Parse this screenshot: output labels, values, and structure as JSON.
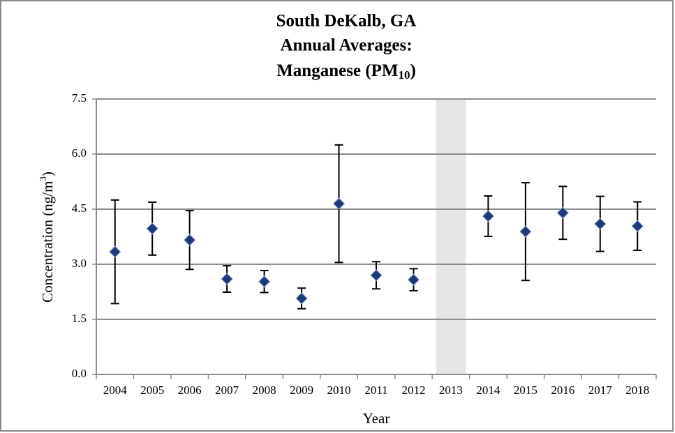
{
  "chart_data": {
    "type": "errorbar_scatter",
    "title": [
      "South DeKalb, GA",
      "Annual Averages:"
    ],
    "title_line3": {
      "text": "Manganese (PM",
      "subscript": "10",
      "after": ")"
    },
    "y_label": {
      "text": "Concentration (ng/m",
      "superscript": "3",
      "after": ")"
    },
    "x_label": "Year",
    "categories": [
      "2004",
      "2005",
      "2006",
      "2007",
      "2008",
      "2009",
      "2010",
      "2011",
      "2012",
      "2013",
      "2014",
      "2015",
      "2016",
      "2017",
      "2018"
    ],
    "values": [
      3.34,
      3.97,
      3.66,
      2.6,
      2.53,
      2.07,
      4.65,
      2.7,
      2.58,
      null,
      4.31,
      3.89,
      4.4,
      4.1,
      4.04
    ],
    "errors": [
      1.41,
      0.72,
      0.8,
      0.36,
      0.3,
      0.28,
      1.6,
      0.37,
      0.3,
      null,
      0.55,
      1.33,
      0.72,
      0.75,
      0.66
    ],
    "color": "#1f3a78",
    "shaded_category_index": 9,
    "shade_color": "#e6e6e6",
    "ylim": [
      0,
      7.5
    ],
    "yticks": [
      {
        "value": 0,
        "label": "0.0"
      },
      1.5,
      {
        "value": 3,
        "label": "3.0"
      },
      4.5,
      {
        "value": 6,
        "label": "6.0"
      },
      7.5
    ],
    "grid": true
  }
}
